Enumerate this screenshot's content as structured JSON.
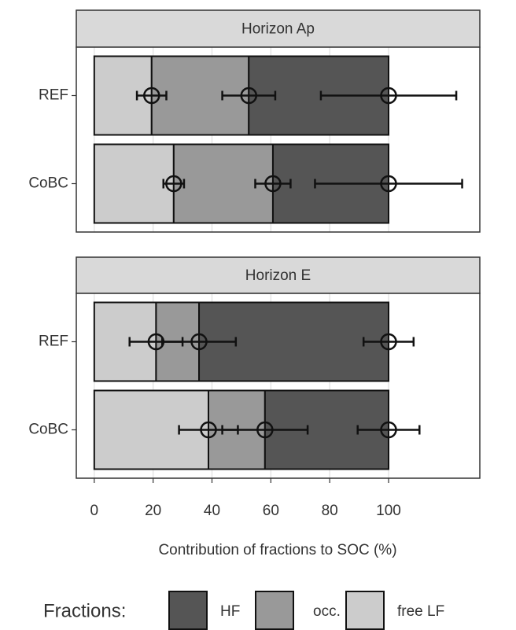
{
  "chart_data": {
    "type": "stacked-barh",
    "x_label": "Contribution of fractions to SOC (%)",
    "legend_title": "Fractions:",
    "xlim": [
      -6.1,
      131
    ],
    "xticks": [
      0,
      20,
      40,
      60,
      80,
      100
    ],
    "grid": true,
    "panels": [
      {
        "title": "Horizon Ap",
        "categories": [
          "REF",
          "CoBC"
        ],
        "series": [
          {
            "name": "free LF",
            "color": "#cccccc",
            "values": [
              19.5,
              27
            ],
            "errors": [
              5,
              3.5
            ]
          },
          {
            "name": "occ. LF",
            "color": "#999999",
            "values": [
              33,
              33.7
            ],
            "errors": [
              9,
              6
            ]
          },
          {
            "name": "HF",
            "color": "#555555",
            "values": [
              47.5,
              39.3
            ],
            "errors": [
              23,
              25
            ]
          }
        ]
      },
      {
        "title": "Horizon E",
        "categories": [
          "REF",
          "CoBC"
        ],
        "series": [
          {
            "name": "free LF",
            "color": "#cccccc",
            "values": [
              21,
              38.8
            ],
            "errors": [
              9,
              10
            ]
          },
          {
            "name": "occ. LF",
            "color": "#999999",
            "values": [
              14.6,
              19.2
            ],
            "errors": [
              12.5,
              14.5
            ]
          },
          {
            "name": "HF",
            "color": "#555555",
            "values": [
              64.4,
              42
            ],
            "errors": [
              8.5,
              10.5
            ]
          }
        ]
      }
    ]
  }
}
